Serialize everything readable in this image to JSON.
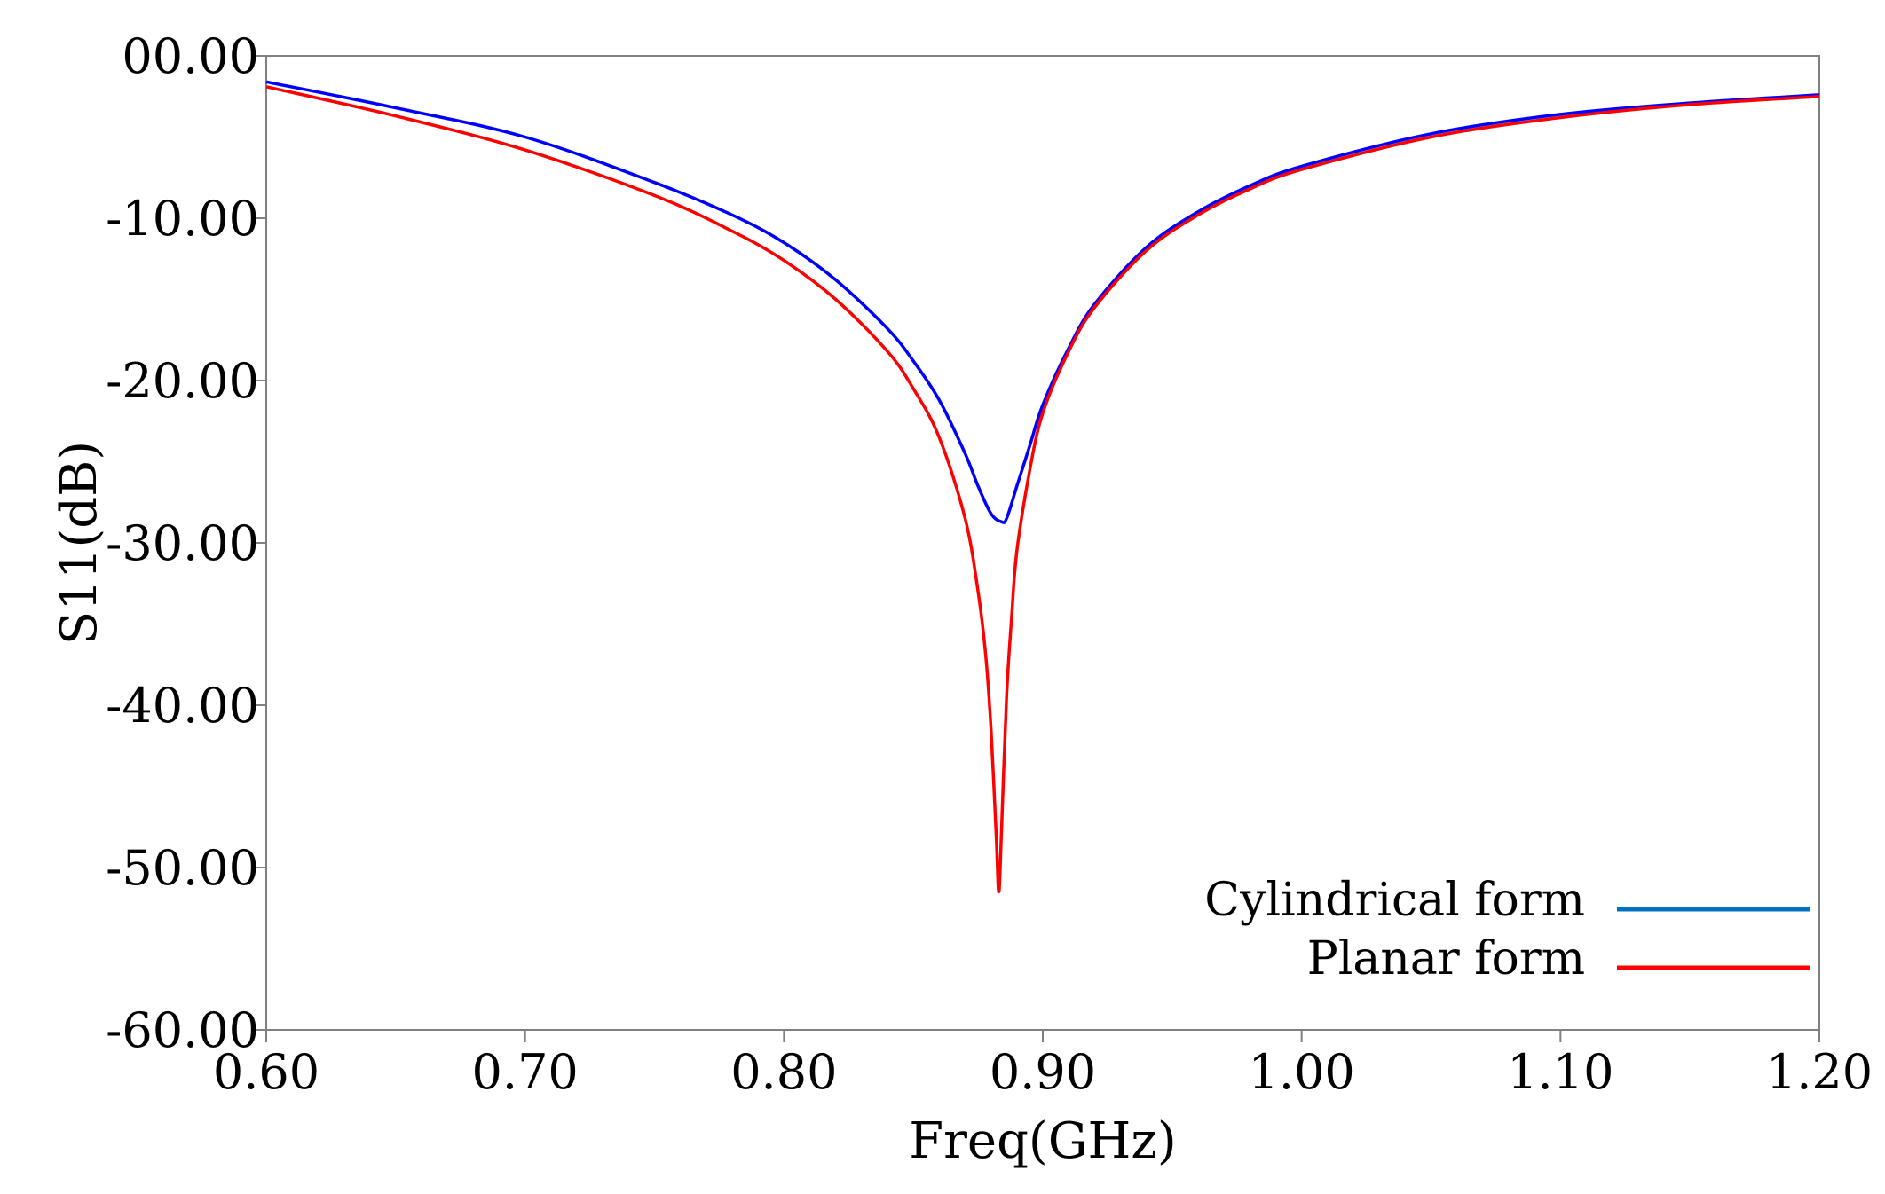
{
  "chart_data": {
    "type": "line",
    "title": "",
    "xlabel": "Freq(GHz)",
    "ylabel": "S11(dB)",
    "xlim": [
      0.6,
      1.2
    ],
    "ylim": [
      -60,
      0
    ],
    "x_ticks": [
      0.6,
      0.7,
      0.8,
      0.9,
      1.0,
      1.1,
      1.2
    ],
    "x_tick_labels": [
      "0.60",
      "0.70",
      "0.80",
      "0.90",
      "1.00",
      "1.10",
      "1.20"
    ],
    "y_ticks": [
      0,
      -10,
      -20,
      -30,
      -40,
      -50,
      -60
    ],
    "y_tick_labels": [
      "00.00",
      "-10.00",
      "-20.00",
      "-30.00",
      "-40.00",
      "-50.00",
      "-60.00"
    ],
    "grid": false,
    "legend_position": "bottom-right",
    "series": [
      {
        "name": "Cylindrical form",
        "color": "#0000ff",
        "legend_color": "#0070c0",
        "x": [
          0.6,
          0.65,
          0.7,
          0.75,
          0.78,
          0.8,
          0.82,
          0.84,
          0.85,
          0.86,
          0.87,
          0.875,
          0.88,
          0.884,
          0.886,
          0.89,
          0.895,
          0.9,
          0.91,
          0.92,
          0.94,
          0.96,
          0.98,
          1.0,
          1.05,
          1.1,
          1.15,
          1.2
        ],
        "y": [
          -1.6,
          -3.2,
          -5.0,
          -7.8,
          -9.8,
          -11.5,
          -13.8,
          -16.8,
          -18.8,
          -21.2,
          -24.5,
          -26.5,
          -28.2,
          -28.7,
          -28.5,
          -26.5,
          -24.0,
          -21.5,
          -18.0,
          -15.3,
          -11.8,
          -9.6,
          -8.0,
          -6.8,
          -4.8,
          -3.6,
          -2.9,
          -2.4
        ]
      },
      {
        "name": "Planar form",
        "color": "#ff0000",
        "legend_color": "#ff0000",
        "x": [
          0.6,
          0.65,
          0.7,
          0.75,
          0.78,
          0.8,
          0.82,
          0.84,
          0.85,
          0.86,
          0.87,
          0.875,
          0.878,
          0.88,
          0.882,
          0.883,
          0.884,
          0.886,
          0.888,
          0.89,
          0.895,
          0.9,
          0.91,
          0.92,
          0.94,
          0.96,
          0.98,
          1.0,
          1.05,
          1.1,
          1.15,
          1.2
        ],
        "y": [
          -1.9,
          -3.7,
          -5.8,
          -8.6,
          -10.8,
          -12.6,
          -15.0,
          -18.2,
          -20.5,
          -23.5,
          -28.5,
          -33.0,
          -37.0,
          -41.5,
          -48.0,
          -51.5,
          -48.0,
          -39.5,
          -34.5,
          -30.5,
          -25.5,
          -22.0,
          -18.2,
          -15.5,
          -12.0,
          -9.8,
          -8.2,
          -7.0,
          -5.0,
          -3.8,
          -3.0,
          -2.5
        ]
      }
    ]
  }
}
